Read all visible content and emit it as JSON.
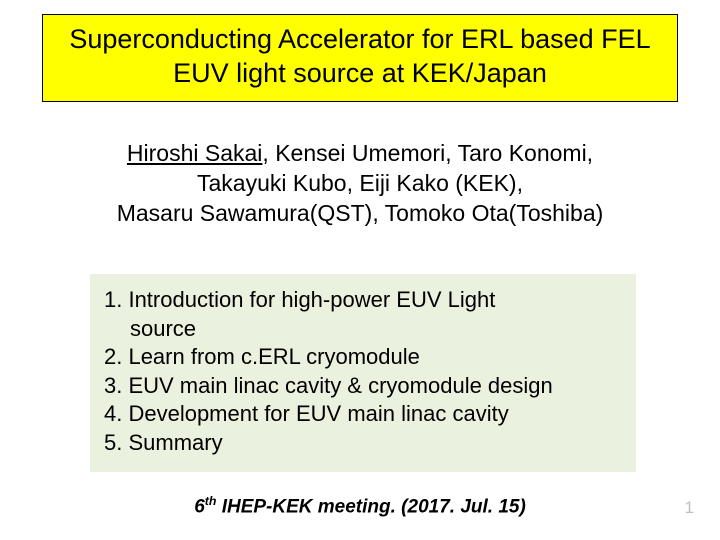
{
  "title": {
    "text": "Superconducting Accelerator for ERL based FEL EUV light source at KEK/Japan",
    "bg_color": "#ffff00",
    "border_color": "#000000",
    "font_size": 27,
    "text_color": "#000000"
  },
  "authors": {
    "underlined": "Hiroshi Sakai",
    "rest_line1": ", Kensei Umemori, Taro Konomi,",
    "line2": "Takayuki Kubo, Eiji Kako (KEK),",
    "line3": "Masaru Sawamura(QST), Tomoko Ota(Toshiba)",
    "font_size": 23,
    "text_color": "#000000"
  },
  "outline": {
    "bg_color": "#eaf1de",
    "font_size": 22,
    "text_color": "#000000",
    "items": [
      "1. Introduction for high-power EUV Light",
      "source",
      "2. Learn from c.ERL cryomodule",
      "3. EUV main linac cavity & cryomodule design",
      "4. Development for EUV main linac cavity",
      "5. Summary"
    ]
  },
  "footer": {
    "prefix": "6",
    "sup": "th",
    "rest": " IHEP-KEK meeting. (2017. Jul. 15)",
    "font_size": 19,
    "text_color": "#000000"
  },
  "page_number": {
    "value": "1",
    "color": "#bfbfbf",
    "font_size": 17
  }
}
